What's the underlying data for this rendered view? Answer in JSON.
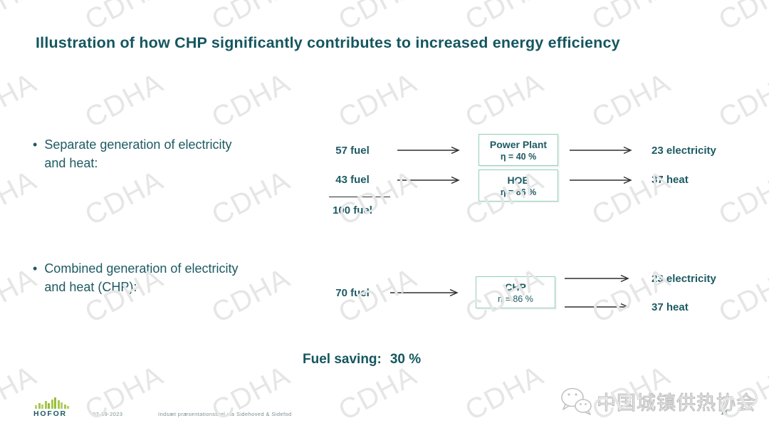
{
  "watermark": {
    "text": "CDHA"
  },
  "slide": {
    "title": "Illustration of how CHP significantly contributes to increased energy efficiency",
    "bullets": [
      {
        "line1": "Separate generation of electricity",
        "line2": "and heat:"
      },
      {
        "line1": "Combined generation of electricity",
        "line2": "and heat (CHP):"
      }
    ],
    "separate": {
      "rows": [
        {
          "input": "57 fuel",
          "box_title": "Power Plant",
          "box_eta": "η = 40 %",
          "output": "23 electricity"
        },
        {
          "input": "43 fuel",
          "box_title": "HOB",
          "box_eta": "η = 86 %",
          "output": "37 heat"
        }
      ],
      "total": "100 fuel"
    },
    "combined": {
      "input": "70 fuel",
      "box_title": "CHP",
      "box_eta": "η = 86 %",
      "outputs": [
        "23 electricity",
        "37 heat"
      ]
    },
    "fuel_saving_label": "Fuel saving:",
    "fuel_saving_value": "30 %"
  },
  "footer": {
    "logo_text": "HOFOR",
    "date": "02-09-2023",
    "note": "Indsæt præsentationstitel via Sidehoved & Sidefod",
    "page_number": "14"
  },
  "branding": {
    "association_name": "中国城镇供热协会"
  },
  "colors": {
    "accent_dark_teal": "#15565F",
    "box_border_green": "#8FCFBA",
    "logo_green": "#A6C84A",
    "watermark_gray": "#E6E6E6",
    "arrow_dark": "#2E2E2E"
  }
}
